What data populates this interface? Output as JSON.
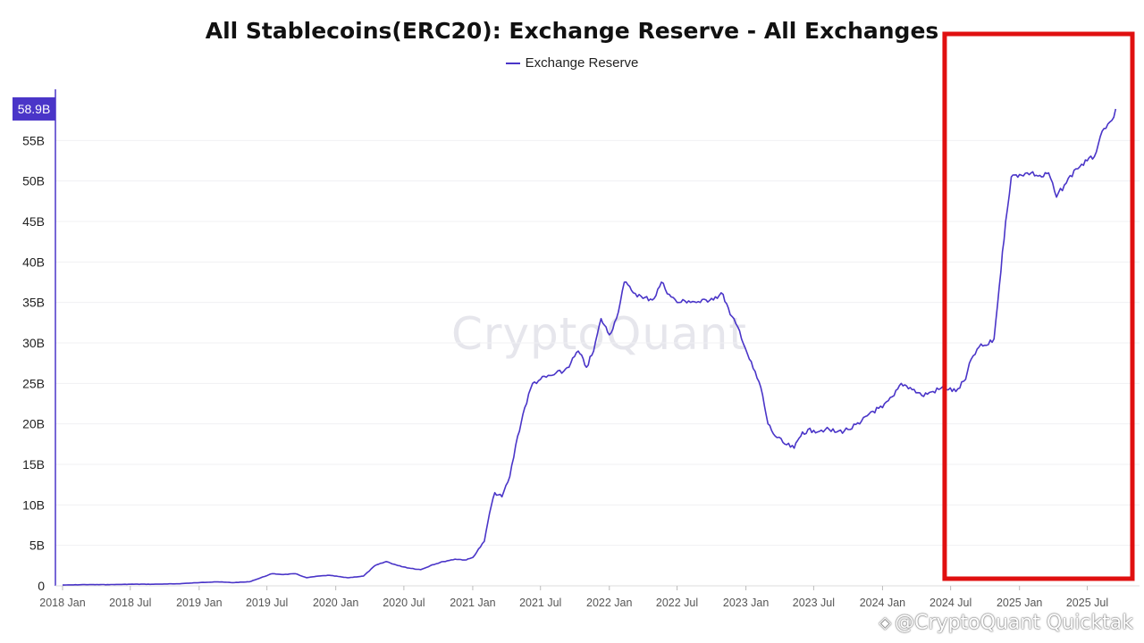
{
  "chart_data": {
    "type": "line",
    "title": "All Stablecoins(ERC20): Exchange Reserve - All Exchanges",
    "legend": {
      "placement": "top-center",
      "entries": [
        "Exchange Reserve"
      ]
    },
    "series": [
      {
        "name": "Exchange Reserve",
        "color": "#4a35c8",
        "points": [
          [
            "2018-01-01",
            0.1
          ],
          [
            "2018-03-01",
            0.15
          ],
          [
            "2018-05-01",
            0.15
          ],
          [
            "2018-07-01",
            0.2
          ],
          [
            "2018-09-01",
            0.2
          ],
          [
            "2018-11-01",
            0.25
          ],
          [
            "2019-01-01",
            0.4
          ],
          [
            "2019-02-15",
            0.5
          ],
          [
            "2019-04-01",
            0.4
          ],
          [
            "2019-05-15",
            0.5
          ],
          [
            "2019-06-15",
            1.0
          ],
          [
            "2019-07-15",
            1.5
          ],
          [
            "2019-08-15",
            1.4
          ],
          [
            "2019-09-15",
            1.5
          ],
          [
            "2019-10-15",
            1.0
          ],
          [
            "2019-11-15",
            1.2
          ],
          [
            "2019-12-15",
            1.3
          ],
          [
            "2020-02-01",
            1.0
          ],
          [
            "2020-03-15",
            1.2
          ],
          [
            "2020-04-15",
            2.5
          ],
          [
            "2020-05-15",
            3.0
          ],
          [
            "2020-06-15",
            2.5
          ],
          [
            "2020-07-15",
            2.2
          ],
          [
            "2020-08-15",
            2.0
          ],
          [
            "2020-09-15",
            2.6
          ],
          [
            "2020-10-15",
            3.0
          ],
          [
            "2020-11-15",
            3.3
          ],
          [
            "2020-12-15",
            3.2
          ],
          [
            "2021-01-01",
            3.5
          ],
          [
            "2021-02-01",
            5.5
          ],
          [
            "2021-02-15",
            9.0
          ],
          [
            "2021-03-01",
            11.5
          ],
          [
            "2021-03-20",
            11.0
          ],
          [
            "2021-04-10",
            13.5
          ],
          [
            "2021-05-01",
            18.5
          ],
          [
            "2021-05-20",
            22.0
          ],
          [
            "2021-06-10",
            25.0
          ],
          [
            "2021-07-01",
            25.5
          ],
          [
            "2021-08-01",
            26.0
          ],
          [
            "2021-09-01",
            26.5
          ],
          [
            "2021-09-20",
            27.5
          ],
          [
            "2021-10-10",
            29.0
          ],
          [
            "2021-11-01",
            27.0
          ],
          [
            "2021-11-20",
            29.0
          ],
          [
            "2021-12-10",
            33.0
          ],
          [
            "2022-01-01",
            31.0
          ],
          [
            "2022-01-20",
            33.0
          ],
          [
            "2022-02-10",
            37.5
          ],
          [
            "2022-03-01",
            36.5
          ],
          [
            "2022-04-01",
            35.5
          ],
          [
            "2022-05-01",
            35.5
          ],
          [
            "2022-05-20",
            37.5
          ],
          [
            "2022-06-10",
            36.0
          ],
          [
            "2022-07-01",
            35.0
          ],
          [
            "2022-08-01",
            35.2
          ],
          [
            "2022-09-01",
            35.0
          ],
          [
            "2022-10-01",
            35.5
          ],
          [
            "2022-11-01",
            36.0
          ],
          [
            "2022-11-20",
            33.5
          ],
          [
            "2022-12-15",
            31.5
          ],
          [
            "2023-01-10",
            28.0
          ],
          [
            "2023-02-10",
            24.5
          ],
          [
            "2023-03-01",
            20.0
          ],
          [
            "2023-03-20",
            18.5
          ],
          [
            "2023-04-15",
            17.5
          ],
          [
            "2023-05-10",
            17.0
          ],
          [
            "2023-06-01",
            19.0
          ],
          [
            "2023-07-01",
            19.2
          ],
          [
            "2023-08-01",
            19.3
          ],
          [
            "2023-09-01",
            19.0
          ],
          [
            "2023-10-01",
            19.3
          ],
          [
            "2023-11-01",
            20.0
          ],
          [
            "2023-12-01",
            21.5
          ],
          [
            "2024-01-01",
            22.0
          ],
          [
            "2024-02-01",
            23.5
          ],
          [
            "2024-02-20",
            25.0
          ],
          [
            "2024-03-15",
            24.5
          ],
          [
            "2024-04-15",
            23.5
          ],
          [
            "2024-05-15",
            24.0
          ],
          [
            "2024-06-15",
            24.5
          ],
          [
            "2024-07-15",
            24.0
          ],
          [
            "2024-08-10",
            25.5
          ],
          [
            "2024-08-25",
            28.0
          ],
          [
            "2024-09-15",
            29.5
          ],
          [
            "2024-10-10",
            29.8
          ],
          [
            "2024-10-25",
            30.5
          ],
          [
            "2024-11-08",
            37.0
          ],
          [
            "2024-11-25",
            45.0
          ],
          [
            "2024-12-10",
            50.5
          ],
          [
            "2025-01-01",
            50.8
          ],
          [
            "2025-02-01",
            51.0
          ],
          [
            "2025-03-01",
            50.5
          ],
          [
            "2025-03-20",
            51.0
          ],
          [
            "2025-04-10",
            48.0
          ],
          [
            "2025-05-01",
            49.5
          ],
          [
            "2025-06-01",
            51.5
          ],
          [
            "2025-07-01",
            52.5
          ],
          [
            "2025-07-20",
            53.0
          ],
          [
            "2025-08-05",
            55.5
          ],
          [
            "2025-08-20",
            56.5
          ],
          [
            "2025-09-05",
            57.5
          ],
          [
            "2025-09-15",
            58.9
          ]
        ]
      }
    ],
    "x_axis": {
      "type": "date",
      "range": [
        "2018-01-01",
        "2025-10-01"
      ],
      "ticks": [
        [
          "2018-01-01",
          "2018 Jan"
        ],
        [
          "2018-07-01",
          "2018 Jul"
        ],
        [
          "2019-01-01",
          "2019 Jan"
        ],
        [
          "2019-07-01",
          "2019 Jul"
        ],
        [
          "2020-01-01",
          "2020 Jan"
        ],
        [
          "2020-07-01",
          "2020 Jul"
        ],
        [
          "2021-01-01",
          "2021 Jan"
        ],
        [
          "2021-07-01",
          "2021 Jul"
        ],
        [
          "2022-01-01",
          "2022 Jan"
        ],
        [
          "2022-07-01",
          "2022 Jul"
        ],
        [
          "2023-01-01",
          "2023 Jan"
        ],
        [
          "2023-07-01",
          "2023 Jul"
        ],
        [
          "2024-01-01",
          "2024 Jan"
        ],
        [
          "2024-07-01",
          "2024 Jul"
        ],
        [
          "2025-01-01",
          "2025 Jan"
        ],
        [
          "2025-07-01",
          "2025 Jul"
        ]
      ]
    },
    "y_axis": {
      "range": [
        0,
        60
      ],
      "ticks": [
        [
          0,
          "0"
        ],
        [
          5,
          "5B"
        ],
        [
          10,
          "10B"
        ],
        [
          15,
          "15B"
        ],
        [
          20,
          "20B"
        ],
        [
          25,
          "25B"
        ],
        [
          30,
          "30B"
        ],
        [
          35,
          "35B"
        ],
        [
          40,
          "40B"
        ],
        [
          45,
          "45B"
        ],
        [
          50,
          "50B"
        ],
        [
          55,
          "55B"
        ]
      ],
      "current_value_label": "58.9B",
      "current_value": 58.9,
      "grid": true
    },
    "highlight_box": {
      "color": "#e01010",
      "x_range": [
        "2024-06-15",
        "2025-10-01"
      ],
      "y_range": [
        0,
        60
      ]
    }
  },
  "watermark": "CryptoQuant",
  "attribution": "@CryptoQuant Quicktak"
}
